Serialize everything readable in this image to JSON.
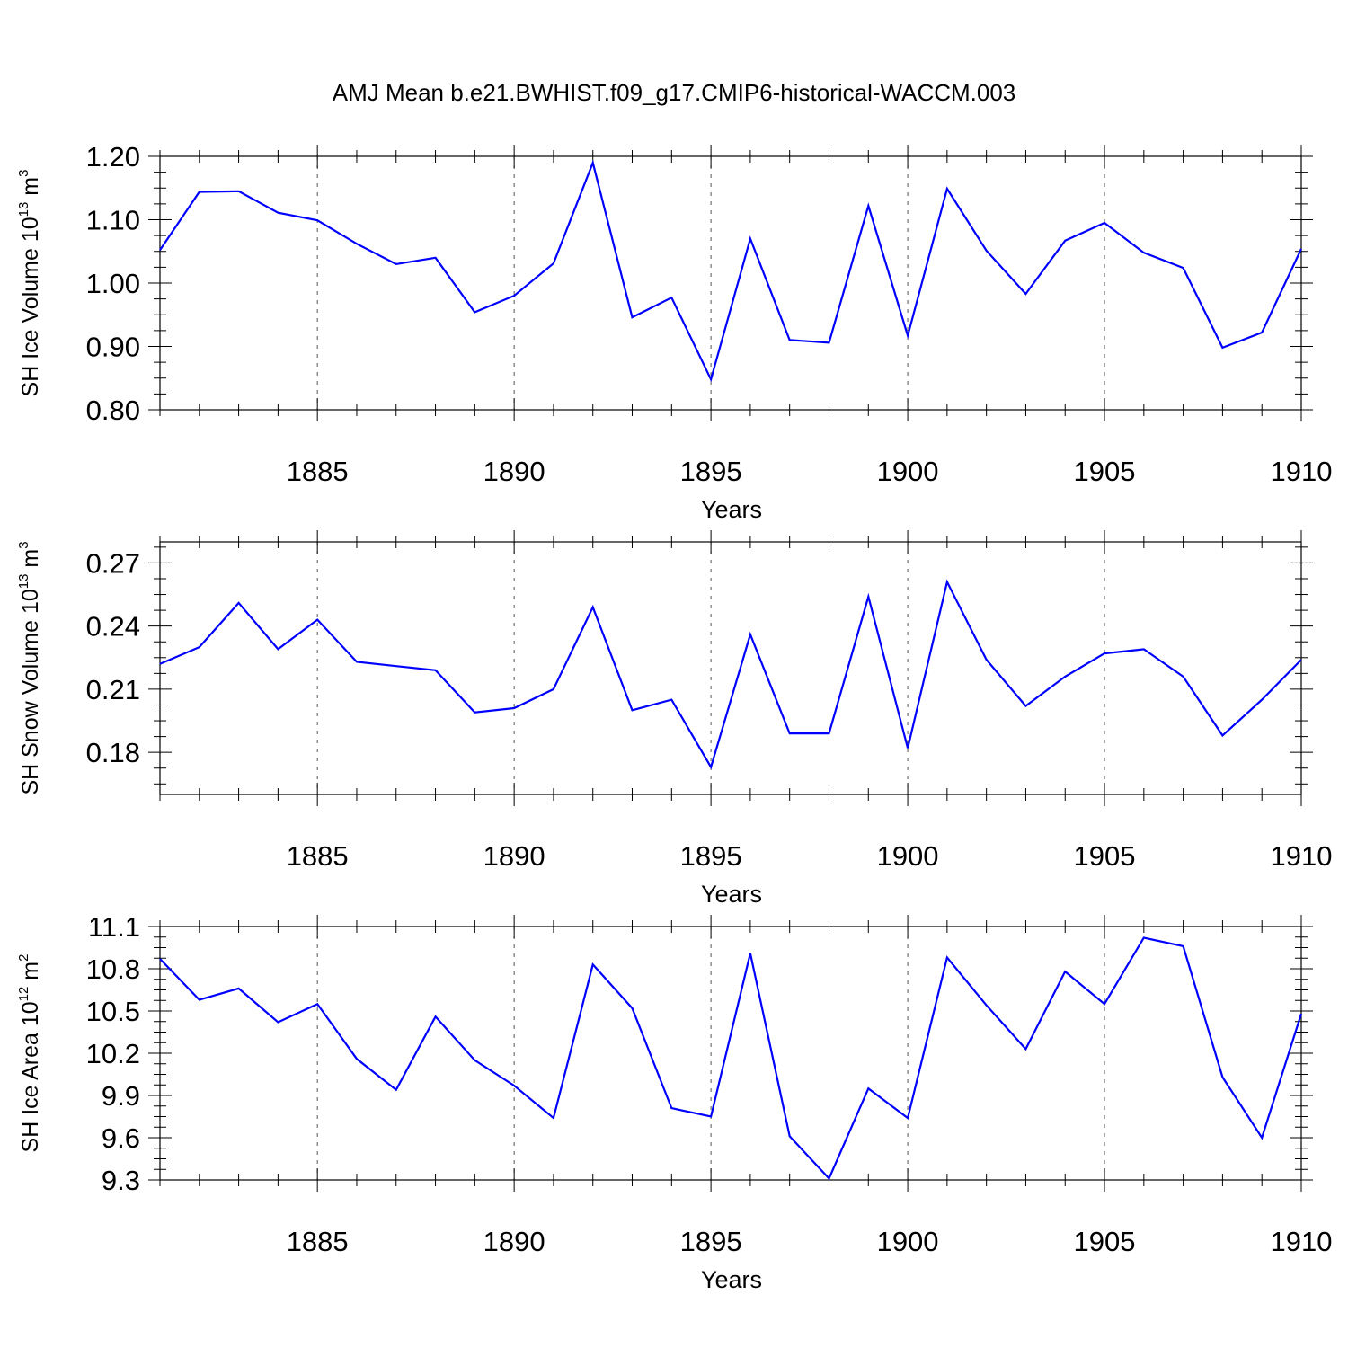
{
  "title": "AMJ Mean b.e21.BWHIST.f09_g17.CMIP6-historical-WACCM.003",
  "colors": {
    "line": "#0000ff",
    "axis": "#000000",
    "grid": "#555555"
  },
  "chart_data": [
    {
      "type": "line",
      "ylabel": {
        "text": "SH Ice Volume 10",
        "exp": "13",
        "unit": " m",
        "unit_exp": "3"
      },
      "xlabel": "Years",
      "xlim": [
        1881,
        1910
      ],
      "ylim": [
        0.8,
        1.2
      ],
      "yticks": [
        "1.20",
        "1.10",
        "1.00",
        "0.90",
        "0.80"
      ],
      "xticks": [
        "1885",
        "1890",
        "1895",
        "1900",
        "1905",
        "1910"
      ],
      "grid": "vertical dashed at major x ticks",
      "series": [
        {
          "x": [
            1881,
            1882,
            1883,
            1884,
            1885,
            1886,
            1887,
            1888,
            1889,
            1890,
            1891,
            1892,
            1893,
            1894,
            1895,
            1896,
            1897,
            1898,
            1899,
            1900,
            1901,
            1902,
            1903,
            1904,
            1905,
            1906,
            1907,
            1908,
            1909,
            1910
          ],
          "values": [
            1.052,
            1.144,
            1.145,
            1.111,
            1.099,
            1.062,
            1.03,
            1.04,
            0.954,
            0.98,
            1.031,
            1.19,
            0.946,
            0.977,
            0.848,
            1.07,
            0.91,
            0.906,
            1.122,
            0.917,
            1.149,
            1.051,
            0.983,
            1.067,
            1.095,
            1.048,
            1.024,
            0.898,
            0.922,
            1.054
          ]
        }
      ]
    },
    {
      "type": "line",
      "ylabel": {
        "text": "SH Snow Volume 10",
        "exp": "13",
        "unit": " m",
        "unit_exp": "3"
      },
      "xlabel": "Years",
      "xlim": [
        1881,
        1910
      ],
      "ylim": [
        0.16,
        0.28
      ],
      "yticks": [
        "0.27",
        "0.24",
        "0.21",
        "0.18"
      ],
      "xticks": [
        "1885",
        "1890",
        "1895",
        "1900",
        "1905",
        "1910"
      ],
      "grid": "vertical dashed at major x ticks",
      "series": [
        {
          "x": [
            1881,
            1882,
            1883,
            1884,
            1885,
            1886,
            1887,
            1888,
            1889,
            1890,
            1891,
            1892,
            1893,
            1894,
            1895,
            1896,
            1897,
            1898,
            1899,
            1900,
            1901,
            1902,
            1903,
            1904,
            1905,
            1906,
            1907,
            1908,
            1909,
            1910
          ],
          "values": [
            0.222,
            0.23,
            0.251,
            0.229,
            0.243,
            0.223,
            0.221,
            0.219,
            0.199,
            0.201,
            0.21,
            0.249,
            0.2,
            0.205,
            0.173,
            0.236,
            0.189,
            0.189,
            0.254,
            0.182,
            0.261,
            0.224,
            0.202,
            0.216,
            0.227,
            0.229,
            0.216,
            0.188,
            0.205,
            0.224
          ]
        }
      ]
    },
    {
      "type": "line",
      "ylabel": {
        "text": "SH Ice Area 10",
        "exp": "12",
        "unit": " m",
        "unit_exp": "2"
      },
      "xlabel": "Years",
      "xlim": [
        1881,
        1910
      ],
      "ylim": [
        9.3,
        11.1
      ],
      "yticks": [
        "11.1",
        "10.8",
        "10.5",
        "10.2",
        "9.9",
        "9.6",
        "9.3"
      ],
      "xticks": [
        "1885",
        "1890",
        "1895",
        "1900",
        "1905",
        "1910"
      ],
      "grid": "vertical dashed at major x ticks",
      "series": [
        {
          "x": [
            1881,
            1882,
            1883,
            1884,
            1885,
            1886,
            1887,
            1888,
            1889,
            1890,
            1891,
            1892,
            1893,
            1894,
            1895,
            1896,
            1897,
            1898,
            1899,
            1900,
            1901,
            1902,
            1903,
            1904,
            1905,
            1906,
            1907,
            1908,
            1909,
            1910
          ],
          "values": [
            10.87,
            10.58,
            10.66,
            10.42,
            10.55,
            10.16,
            9.94,
            10.46,
            10.15,
            9.97,
            9.74,
            10.83,
            10.52,
            9.81,
            9.75,
            10.91,
            9.61,
            9.31,
            9.95,
            9.74,
            10.88,
            10.54,
            10.23,
            10.78,
            10.55,
            11.02,
            10.96,
            10.03,
            9.6,
            10.48
          ]
        }
      ]
    }
  ]
}
